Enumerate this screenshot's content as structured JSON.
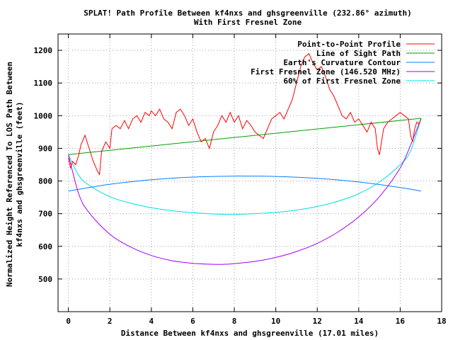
{
  "chart_data": {
    "type": "line",
    "title": "SPLAT! Path Profile Between kf4nxs and ghsgreenville (232.86° azimuth)",
    "subtitle": "With First Fresnel Zone",
    "xlabel": "Distance Between kf4nxs and ghsgreenville (17.01 miles)",
    "ylabel_line1": "Normalized Height Referenced To LOS Path Between",
    "ylabel_line2": "kf4nxs and ghsgreenville (feet)",
    "xlim": [
      -0.5,
      18
    ],
    "ylim": [
      400,
      1250
    ],
    "x_ticks": [
      0,
      2,
      4,
      6,
      8,
      10,
      12,
      14,
      16,
      18
    ],
    "y_ticks": [
      500,
      600,
      700,
      800,
      900,
      1000,
      1100,
      1200
    ],
    "grid": true,
    "legend_position": "top-right",
    "series": [
      {
        "name": "Point-to-Point Profile",
        "color": "#ff0000",
        "x": [
          0,
          0.1,
          0.2,
          0.35,
          0.5,
          0.6,
          0.8,
          1.0,
          1.1,
          1.2,
          1.4,
          1.5,
          1.6,
          1.8,
          2.0,
          2.1,
          2.3,
          2.5,
          2.7,
          2.9,
          3.1,
          3.3,
          3.5,
          3.7,
          3.9,
          4.0,
          4.2,
          4.4,
          4.6,
          4.8,
          5.0,
          5.2,
          5.4,
          5.6,
          5.8,
          6.0,
          6.2,
          6.4,
          6.6,
          6.8,
          7.0,
          7.2,
          7.4,
          7.6,
          7.8,
          8.0,
          8.2,
          8.4,
          8.6,
          8.8,
          9.0,
          9.2,
          9.4,
          9.6,
          9.8,
          10.0,
          10.2,
          10.4,
          10.6,
          10.8,
          11.0,
          11.2,
          11.4,
          11.6,
          11.8,
          12.0,
          12.2,
          12.4,
          12.6,
          12.8,
          13.0,
          13.2,
          13.4,
          13.6,
          13.8,
          14.0,
          14.2,
          14.4,
          14.6,
          14.8,
          14.9,
          15.0,
          15.2,
          15.4,
          15.6,
          15.8,
          16.0,
          16.2,
          16.4,
          16.5,
          16.6,
          16.7,
          16.8,
          16.9,
          17.0
        ],
        "values": [
          870,
          840,
          860,
          850,
          880,
          910,
          940,
          900,
          880,
          860,
          830,
          820,
          890,
          920,
          900,
          960,
          970,
          960,
          985,
          960,
          990,
          1000,
          980,
          1010,
          1000,
          1015,
          1000,
          1020,
          990,
          980,
          960,
          1010,
          1020,
          1000,
          970,
          990,
          950,
          920,
          930,
          900,
          950,
          970,
          1000,
          980,
          1010,
          980,
          1000,
          960,
          985,
          970,
          950,
          940,
          930,
          960,
          990,
          1000,
          1010,
          990,
          1020,
          1050,
          1100,
          1150,
          1180,
          1190,
          1160,
          1140,
          1150,
          1120,
          1080,
          1060,
          1030,
          1000,
          990,
          1010,
          980,
          990,
          970,
          950,
          980,
          960,
          900,
          880,
          960,
          980,
          990,
          1000,
          1010,
          1000,
          990,
          940,
          920,
          960,
          980,
          975,
          990
        ]
      },
      {
        "name": "Line of Sight Path",
        "color": "#00a000",
        "x": [
          0,
          17.01
        ],
        "values": [
          881,
          992
        ]
      },
      {
        "name": "Earth's Curvature Contour",
        "color": "#0080ff",
        "x": [
          0,
          2,
          4,
          6,
          8,
          8.5,
          10,
          12,
          14,
          16,
          17.01
        ],
        "values": [
          769,
          790,
          804,
          812,
          815,
          815,
          814,
          808,
          797,
          780,
          769
        ]
      },
      {
        "name": "First Fresnel Zone (146.520 MHz)",
        "color": "#a000ff",
        "x": [
          0,
          0.5,
          1,
          2,
          3,
          4,
          5,
          6,
          7,
          7.5,
          8,
          9,
          10,
          11,
          12,
          13,
          14,
          15,
          16,
          16.5,
          17.01
        ],
        "values": [
          881,
          760,
          703,
          637,
          598,
          572,
          556,
          548,
          545,
          545,
          547,
          554,
          566,
          584,
          609,
          644,
          690,
          752,
          840,
          910,
          992
        ]
      },
      {
        "name": "60% of First Fresnel Zone",
        "color": "#00e0e0",
        "x": [
          0,
          0.5,
          1,
          2,
          3,
          4,
          5,
          6,
          7,
          7.5,
          8,
          9,
          10,
          11,
          12,
          13,
          14,
          15,
          16,
          16.5,
          17.01
        ],
        "values": [
          881,
          817,
          787,
          752,
          732,
          718,
          709,
          703,
          699,
          698,
          698,
          700,
          704,
          711,
          722,
          738,
          761,
          797,
          850,
          892,
          992
        ]
      }
    ]
  }
}
